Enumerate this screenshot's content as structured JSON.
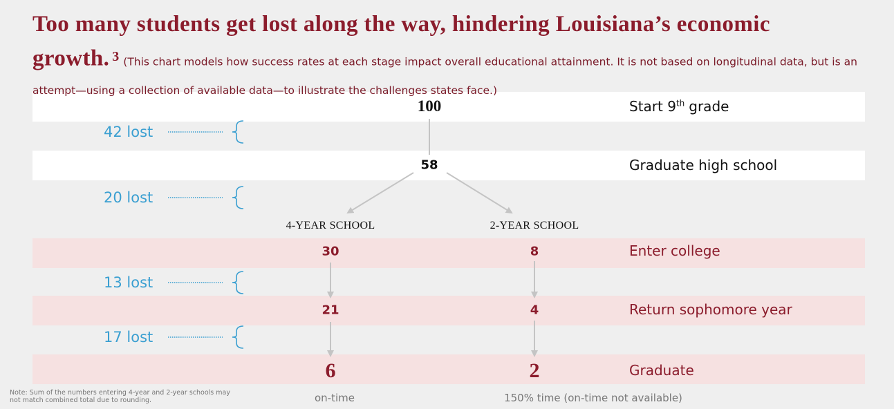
{
  "header": {
    "title": "Too many students get lost along the way, hindering Louisiana’s economic growth.",
    "footnote": "3",
    "subtitle": "(This chart models how success rates at each stage impact overall educational attainment. It is not based on longitudinal data, but is an attempt—using a collection of available data—to illustrate the challenges states face.)"
  },
  "start": {
    "value": 100,
    "label": "Start 9",
    "label_sup": "th",
    "label_end": "grade"
  },
  "high_school": {
    "value": 58,
    "label": "Graduate high school"
  },
  "columns": [
    "4-YEAR SCHOOL",
    "2-YEAR SCHOOL"
  ],
  "rows": [
    {
      "label": "Enter college",
      "values": [
        30,
        8
      ]
    },
    {
      "label": "Return sophomore year",
      "values": [
        21,
        4
      ]
    },
    {
      "label": "Graduate",
      "values": [
        6,
        2
      ]
    }
  ],
  "lost": [
    "42 lost",
    "20 lost",
    "13 lost",
    "17 lost"
  ],
  "column_notes": [
    "on-time",
    "150% time (on-time not available)"
  ],
  "note": "Note: Sum of the numbers entering 4-year and 2-year schools may not match combined total due to rounding."
}
